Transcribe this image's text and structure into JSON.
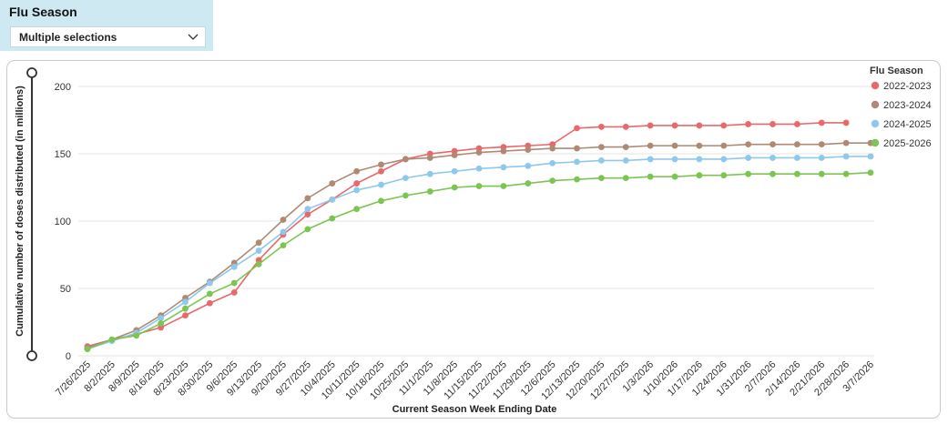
{
  "filter": {
    "title": "Flu Season",
    "selected": "Multiple selections",
    "icon": "chevron-down-icon"
  },
  "chart_data": {
    "type": "line",
    "xlabel": "Current Season Week Ending Date",
    "ylabel": "Cumulative number of doses distributed (in millions)",
    "ylim": [
      0,
      200
    ],
    "yticks": [
      0,
      50,
      100,
      150,
      200
    ],
    "grid": true,
    "legend_title": "Flu Season",
    "legend_position": "top-right",
    "categories": [
      "7/26/2025",
      "8/2/2025",
      "8/9/2025",
      "8/16/2025",
      "8/23/2025",
      "8/30/2025",
      "9/6/2025",
      "9/13/2025",
      "9/20/2025",
      "9/27/2025",
      "10/4/2025",
      "10/11/2025",
      "10/18/2025",
      "10/25/2025",
      "11/1/2025",
      "11/8/2025",
      "11/15/2025",
      "11/22/2025",
      "11/29/2025",
      "12/6/2025",
      "12/13/2025",
      "12/20/2025",
      "12/27/2025",
      "1/3/2026",
      "1/10/2026",
      "1/17/2026",
      "1/24/2026",
      "1/31/2026",
      "2/7/2026",
      "2/14/2026",
      "2/21/2026",
      "2/28/2026",
      "3/7/2026"
    ],
    "series": [
      {
        "name": "2022-2023",
        "color": "#e8686b",
        "values": [
          7,
          12,
          16,
          21,
          30,
          39,
          47,
          71,
          90,
          105,
          116,
          128,
          137,
          146,
          150,
          152,
          154,
          155,
          156,
          157,
          169,
          170,
          170,
          171,
          171,
          171,
          171,
          172,
          172,
          172,
          173,
          173,
          null
        ]
      },
      {
        "name": "2023-2024",
        "color": "#ae8a74",
        "values": [
          6,
          12,
          19,
          30,
          43,
          55,
          69,
          84,
          101,
          117,
          128,
          137,
          142,
          146,
          147,
          149,
          151,
          152,
          153,
          154,
          154,
          155,
          155,
          156,
          156,
          156,
          156,
          157,
          157,
          157,
          157,
          158,
          158
        ]
      },
      {
        "name": "2024-2025",
        "color": "#8ec9ec",
        "values": [
          5,
          11,
          17,
          28,
          40,
          54,
          66,
          78,
          92,
          109,
          116,
          123,
          127,
          132,
          135,
          137,
          139,
          140,
          141,
          143,
          144,
          145,
          145,
          146,
          146,
          146,
          146,
          147,
          147,
          147,
          147,
          148,
          148
        ]
      },
      {
        "name": "2025-2026",
        "color": "#7cc553",
        "values": [
          5,
          12,
          15,
          24,
          35,
          46,
          54,
          68,
          82,
          94,
          102,
          109,
          115,
          119,
          122,
          125,
          126,
          126,
          128,
          130,
          131,
          132,
          132,
          133,
          133,
          134,
          134,
          135,
          135,
          135,
          135,
          135,
          136
        ]
      }
    ]
  }
}
